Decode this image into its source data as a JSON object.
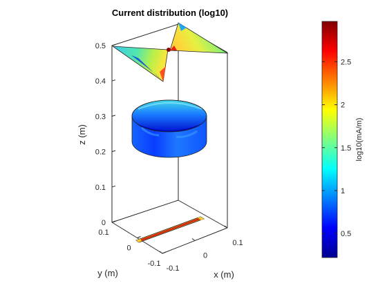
{
  "chart_data": {
    "type": "surface3d",
    "title": "Current distribution (log10)",
    "xlabel": "x (m)",
    "ylabel": "y (m)",
    "zlabel": "z (m)",
    "xlim": [
      -0.1,
      0.1
    ],
    "ylim": [
      -0.1,
      0.1
    ],
    "zlim": [
      0,
      0.5
    ],
    "x_ticks": [
      "-0.1",
      "0",
      "0.1"
    ],
    "y_ticks": [
      "-0.1",
      "0",
      "0.1"
    ],
    "z_ticks": [
      "0",
      "0.1",
      "0.2",
      "0.3",
      "0.4",
      "0.5"
    ],
    "grid": false,
    "colorbar": {
      "label": "log10(mA/m)",
      "colormap": "jet",
      "range": [
        0.22,
        2.97
      ],
      "ticks": [
        "0.5",
        "1",
        "1.5",
        "2",
        "2.5"
      ]
    },
    "objects": [
      {
        "name": "feed strip",
        "z": 0,
        "value_log10": 2.6
      },
      {
        "name": "cylindrical ring",
        "z_range": [
          0.2,
          0.3
        ],
        "value_log10": 0.6
      },
      {
        "name": "bowtie",
        "z": 0.5,
        "value_log10": 1.6
      }
    ]
  },
  "colors": {
    "axis": "#262626",
    "background": "#ffffff"
  }
}
